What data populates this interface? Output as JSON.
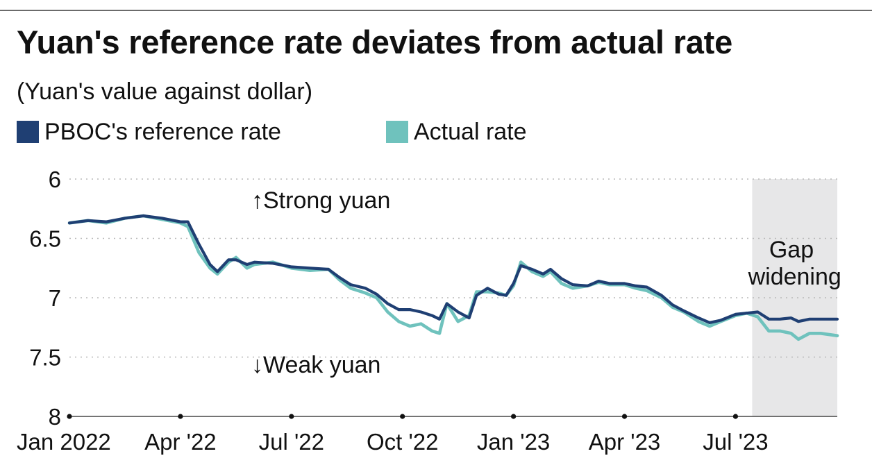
{
  "header": {
    "title": "Yuan's reference rate deviates from actual rate",
    "subtitle": "(Yuan's value against dollar)"
  },
  "legend": {
    "reference_label": "PBOC's reference rate",
    "actual_label": "Actual rate"
  },
  "colors": {
    "reference": "#1f3f73",
    "actual": "#6fc2bd",
    "shade": "#e7e7e8",
    "grid": "#b8b8b8",
    "axis": "#222222"
  },
  "chart_data": {
    "type": "line",
    "title": "Yuan's reference rate deviates from actual rate",
    "subtitle": "(Yuan's value against dollar)",
    "xlabel": "",
    "ylabel": "",
    "y_inverted": true,
    "ylim": [
      6,
      8
    ],
    "yticks": [
      6,
      6.5,
      7,
      7.5,
      8
    ],
    "ytick_labels": [
      "6",
      "6.5",
      "7",
      "7.5",
      "8"
    ],
    "xlim": [
      0,
      20.75
    ],
    "xticks": [
      0,
      3,
      6,
      9,
      12,
      15,
      18
    ],
    "xtick_labels": [
      "Jan 2022",
      "Apr '22",
      "Jul '22",
      "Oct '22",
      "Jan '23",
      "Apr '23",
      "Jul '23"
    ],
    "x_unit": "months since Jan 2022",
    "grid": true,
    "shaded_region": {
      "x_start": 18.45,
      "x_end": 20.75,
      "label_lines": [
        "Gap",
        "widening"
      ]
    },
    "annotations": {
      "strong": "↑Strong yuan",
      "weak": "↓Weak yuan"
    },
    "series": [
      {
        "name": "PBOC's reference rate",
        "color": "#1f3f73",
        "x": [
          0,
          0.5,
          1,
          1.5,
          2,
          2.5,
          3,
          3.2,
          3.5,
          3.8,
          4,
          4.3,
          4.5,
          4.8,
          5,
          5.5,
          6,
          6.5,
          7,
          7.3,
          7.6,
          8,
          8.3,
          8.6,
          8.9,
          9.2,
          9.5,
          9.8,
          10,
          10.2,
          10.5,
          10.8,
          11,
          11.3,
          11.6,
          11.8,
          12,
          12.2,
          12.5,
          12.8,
          13,
          13.3,
          13.6,
          14,
          14.3,
          14.6,
          15,
          15.3,
          15.6,
          16,
          16.3,
          16.6,
          17,
          17.3,
          17.6,
          18,
          18.3,
          18.6,
          18.9,
          19.2,
          19.5,
          19.7,
          20,
          20.3,
          20.75
        ],
        "values": [
          6.37,
          6.35,
          6.36,
          6.33,
          6.31,
          6.33,
          6.36,
          6.36,
          6.55,
          6.72,
          6.78,
          6.68,
          6.68,
          6.72,
          6.7,
          6.71,
          6.74,
          6.75,
          6.76,
          6.83,
          6.89,
          6.92,
          6.97,
          7.05,
          7.1,
          7.1,
          7.12,
          7.15,
          7.18,
          7.05,
          7.12,
          7.17,
          6.98,
          6.92,
          6.97,
          6.98,
          6.88,
          6.73,
          6.76,
          6.8,
          6.76,
          6.84,
          6.89,
          6.9,
          6.86,
          6.88,
          6.88,
          6.9,
          6.91,
          6.98,
          7.06,
          7.11,
          7.17,
          7.21,
          7.19,
          7.14,
          7.13,
          7.12,
          7.18,
          7.18,
          7.17,
          7.2,
          7.18,
          7.18,
          7.18
        ]
      },
      {
        "name": "Actual rate",
        "color": "#6fc2bd",
        "x": [
          0,
          0.5,
          1,
          1.5,
          2,
          2.5,
          3,
          3.2,
          3.5,
          3.8,
          4,
          4.3,
          4.5,
          4.8,
          5,
          5.5,
          6,
          6.5,
          7,
          7.3,
          7.6,
          8,
          8.3,
          8.6,
          8.9,
          9.2,
          9.5,
          9.8,
          10,
          10.2,
          10.5,
          10.8,
          11,
          11.3,
          11.6,
          11.8,
          12,
          12.2,
          12.5,
          12.8,
          13,
          13.3,
          13.6,
          14,
          14.3,
          14.6,
          15,
          15.3,
          15.6,
          16,
          16.3,
          16.6,
          17,
          17.3,
          17.6,
          18,
          18.3,
          18.6,
          18.9,
          19.2,
          19.5,
          19.7,
          20,
          20.3,
          20.75
        ],
        "values": [
          6.37,
          6.35,
          6.37,
          6.33,
          6.31,
          6.34,
          6.37,
          6.4,
          6.62,
          6.75,
          6.8,
          6.7,
          6.66,
          6.75,
          6.72,
          6.7,
          6.75,
          6.77,
          6.76,
          6.85,
          6.92,
          6.96,
          7.0,
          7.12,
          7.2,
          7.24,
          7.22,
          7.28,
          7.3,
          7.05,
          7.2,
          7.15,
          6.95,
          6.95,
          6.96,
          6.98,
          6.9,
          6.7,
          6.78,
          6.82,
          6.78,
          6.88,
          6.92,
          6.9,
          6.87,
          6.89,
          6.89,
          6.92,
          6.94,
          7.0,
          7.08,
          7.12,
          7.2,
          7.24,
          7.2,
          7.15,
          7.13,
          7.16,
          7.28,
          7.28,
          7.3,
          7.35,
          7.3,
          7.3,
          7.32
        ]
      }
    ]
  }
}
